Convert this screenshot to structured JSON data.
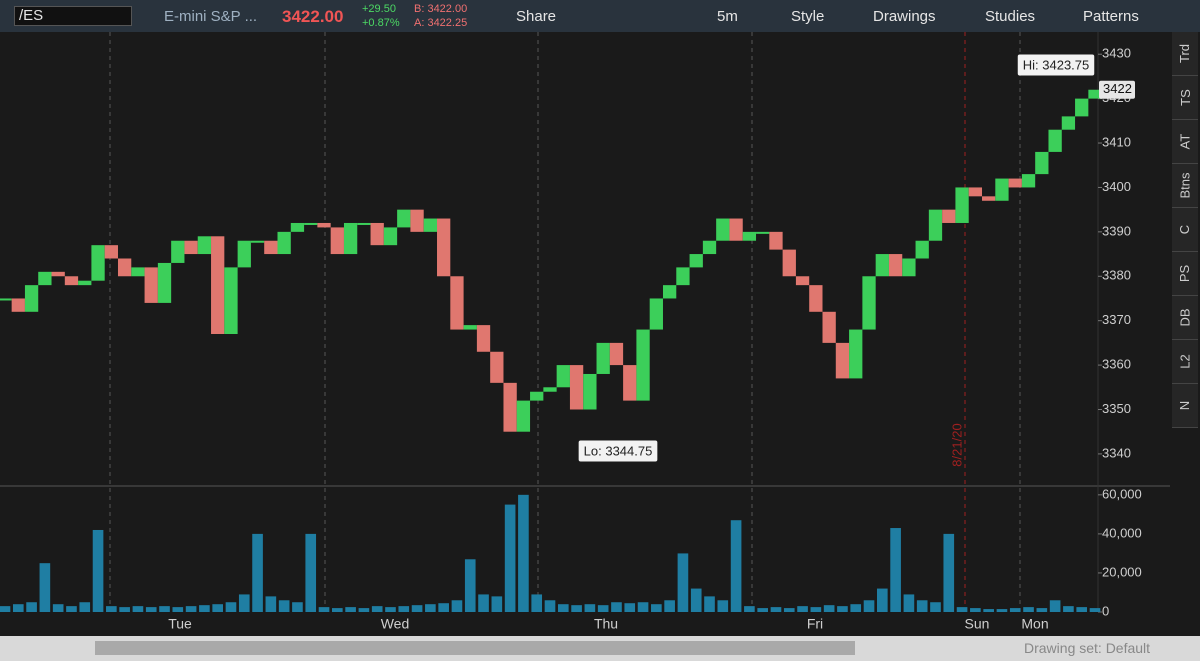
{
  "toolbar": {
    "symbol": "/ES",
    "description": "E-mini S&P ...",
    "last": "3422.00",
    "change": "+29.50",
    "change_pct": "+0.87%",
    "bid": "B: 3422.00",
    "ask": "A: 3422.25",
    "share": "Share",
    "timeframe": "5m",
    "style": "Style",
    "drawings": "Drawings",
    "studies": "Studies",
    "patterns": "Patterns"
  },
  "side_tabs": [
    "Trd",
    "TS",
    "AT",
    "Btns",
    "C",
    "PS",
    "DB",
    "L2",
    "N"
  ],
  "x_labels": [
    "Tue",
    "Wed",
    "Thu",
    "Fri",
    "Sun",
    "Mon"
  ],
  "date_marker": "8/21/20",
  "footer": "Drawing set: Default",
  "chart_data": [
    {
      "type": "candlestick",
      "name": "/ES",
      "values": [
        3375,
        3372,
        3378,
        3381,
        3380,
        3378,
        3379,
        3387,
        3384,
        3380,
        3382,
        3374,
        3383,
        3388,
        3385,
        3389,
        3367,
        3382,
        3388,
        3388,
        3385,
        3390,
        3392,
        3392,
        3391,
        3385,
        3392,
        3392,
        3387,
        3391,
        3395,
        3390,
        3393,
        3380,
        3368,
        3369,
        3363,
        3356,
        3345,
        3352,
        3354,
        3355,
        3360,
        3350,
        3358,
        3365,
        3360,
        3352,
        3368,
        3375,
        3378,
        3382,
        3385,
        3388,
        3393,
        3388,
        3390,
        3390,
        3386,
        3380,
        3378,
        3372,
        3365,
        3357,
        3368,
        3380,
        3385,
        3380,
        3384,
        3388,
        3395,
        3392,
        3400,
        3398,
        3397,
        3402,
        3400,
        3403,
        3408,
        3413,
        3416,
        3420,
        3422
      ],
      "up_color": "#3ccf5a",
      "down_color": "#e0776f",
      "ylim": [
        3333,
        3435
      ],
      "yticks": [
        3340,
        3350,
        3360,
        3370,
        3380,
        3390,
        3400,
        3410,
        3420,
        3430
      ],
      "annotations": [
        "Hi: 3423.75",
        "Lo: 3344.75"
      ],
      "last_price_label": "3422",
      "grid": false
    },
    {
      "type": "bar",
      "name": "Volume",
      "values": [
        3000,
        4000,
        5000,
        25000,
        4000,
        3000,
        5000,
        42000,
        3000,
        2500,
        3000,
        2500,
        3000,
        2500,
        3000,
        3500,
        4000,
        5000,
        9000,
        40000,
        8000,
        6000,
        5000,
        40000,
        2500,
        2000,
        2500,
        2000,
        3000,
        2500,
        3000,
        3500,
        4000,
        4500,
        6000,
        27000,
        9000,
        8000,
        55000,
        60000,
        9000,
        6000,
        4000,
        3500,
        4000,
        3500,
        5000,
        4500,
        5000,
        4000,
        6000,
        30000,
        12000,
        8000,
        6000,
        47000,
        3000,
        2000,
        2500,
        2000,
        3000,
        2500,
        3500,
        3000,
        4000,
        6000,
        12000,
        43000,
        9000,
        6000,
        5000,
        40000,
        2500,
        2000,
        1500,
        1500,
        2000,
        2500,
        2000,
        6000,
        3000,
        2500,
        2000
      ],
      "color": "#1f7ea3",
      "ylim": [
        0,
        63500
      ],
      "yticks": [
        0,
        {
          "value": 20000,
          "label": "20,000"
        },
        {
          "value": 40000,
          "label": "40,000"
        },
        {
          "value": 60000,
          "label": "60,000"
        }
      ]
    }
  ]
}
